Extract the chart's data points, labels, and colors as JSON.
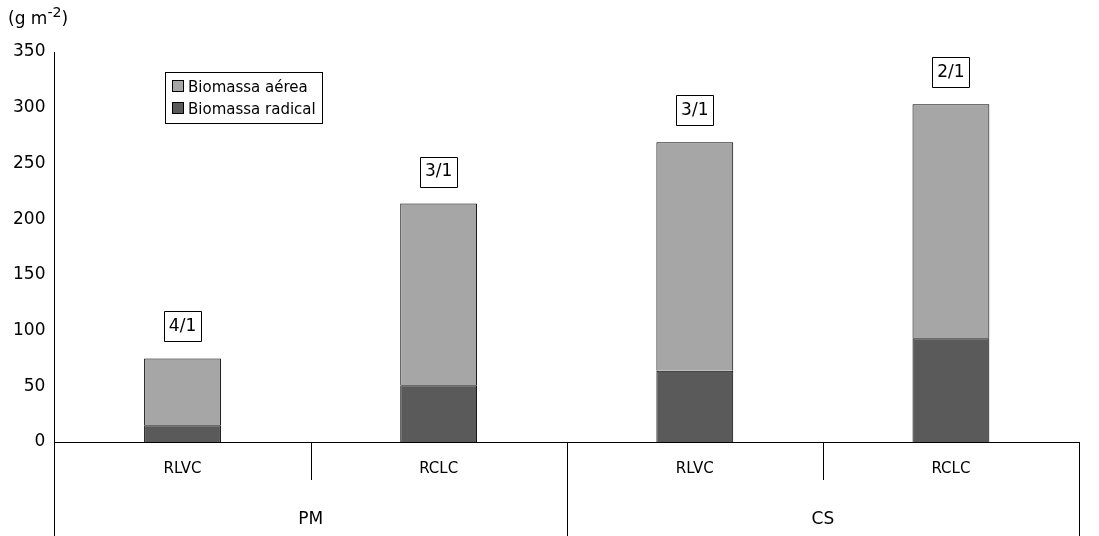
{
  "chart_data": {
    "type": "bar",
    "stacked": true,
    "ylabel": "(g m$^{-2}$)",
    "categories": [
      "RLVC",
      "RCLC",
      "RLVC",
      "RCLC"
    ],
    "series": [
      {
        "name": "Biomassa radical",
        "color": "#5a5a5a",
        "values": [
          15,
          51,
          64,
          93
        ]
      },
      {
        "name": "Biomassa aérea",
        "color": "#a6a6a6",
        "values": [
          60,
          163,
          205,
          210
        ]
      }
    ],
    "ylim": [
      0,
      350
    ],
    "yticks": [
      0,
      50,
      100,
      150,
      200,
      250,
      300,
      350
    ],
    "grid": false,
    "legend": "top left",
    "annotations": [
      "4/1",
      "3/1",
      "3/1",
      "2/1",
      "PM",
      "CS"
    ]
  }
}
